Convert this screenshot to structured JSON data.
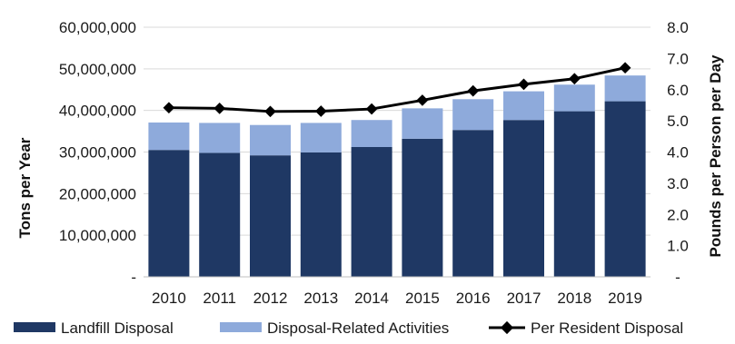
{
  "chart_data": {
    "type": "bar",
    "stacked": true,
    "categories": [
      "2010",
      "2011",
      "2012",
      "2013",
      "2014",
      "2015",
      "2016",
      "2017",
      "2018",
      "2019"
    ],
    "series": [
      {
        "name": "Landfill Disposal",
        "kind": "bar",
        "axis": "left",
        "color": "#1f3864",
        "values": [
          30500000,
          29800000,
          29200000,
          29900000,
          31200000,
          33200000,
          35300000,
          37700000,
          39800000,
          42200000
        ]
      },
      {
        "name": "Disposal-Related Activities",
        "kind": "bar",
        "axis": "left",
        "color": "#8eaadb",
        "values": [
          6600000,
          7200000,
          7300000,
          7100000,
          6500000,
          7300000,
          7400000,
          6900000,
          6400000,
          6200000
        ]
      },
      {
        "name": "Per Resident Disposal",
        "kind": "line",
        "axis": "right",
        "color": "#000000",
        "values": [
          5.42,
          5.4,
          5.3,
          5.31,
          5.38,
          5.66,
          5.96,
          6.17,
          6.35,
          6.7
        ]
      }
    ],
    "ylabel": "Tons per Year",
    "y2label": "Pounds per Person per Day",
    "ylim": [
      0,
      60000000
    ],
    "y2lim": [
      0,
      8
    ],
    "yticks": [
      "-",
      "10,000,000",
      "20,000,000",
      "30,000,000",
      "40,000,000",
      "50,000,000",
      "60,000,000"
    ],
    "y2ticks": [
      "-",
      "1.0",
      "2.0",
      "3.0",
      "4.0",
      "5.0",
      "6.0",
      "7.0",
      "8.0"
    ],
    "grid": true,
    "legend_position": "bottom"
  }
}
